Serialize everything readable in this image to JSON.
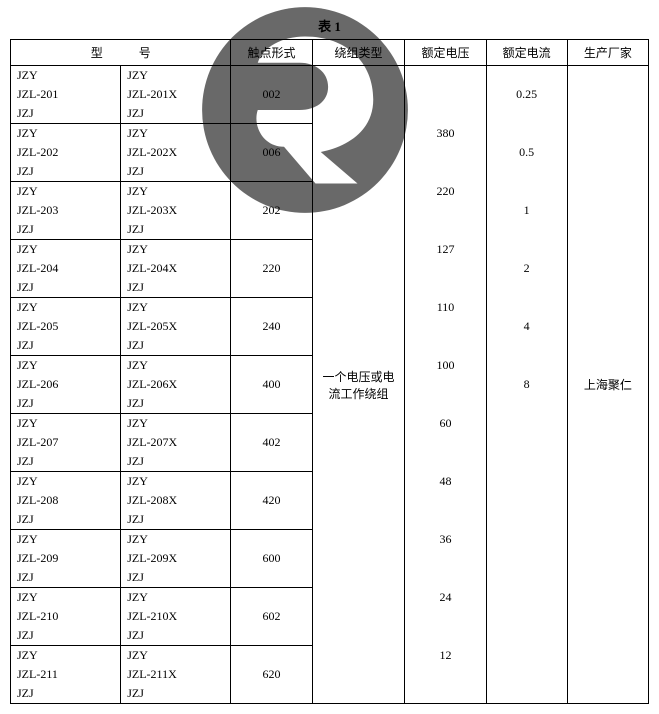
{
  "caption": "表 1",
  "headers": {
    "model": "型　　　号",
    "contact": "触点形式",
    "winding": "绕组类型",
    "voltage": "额定电压",
    "current": "额定电流",
    "mfr": "生产厂家"
  },
  "winding_text": "一个电压或电流工作绕组",
  "mfr_text": "上海聚仁",
  "voltages": [
    "380",
    "220",
    "127",
    "110",
    "100",
    "60",
    "48",
    "36",
    "24",
    "12"
  ],
  "currents": [
    "0.25",
    "0.5",
    "1",
    "2",
    "4",
    "8"
  ],
  "rows": [
    {
      "a1": "JZY",
      "a2": "JZL-201",
      "a3": "JZJ",
      "b1": "JZY",
      "b2": "JZL-201X",
      "b3": "JZJ",
      "ct": "002"
    },
    {
      "a1": "JZY",
      "a2": "JZL-202",
      "a3": "JZJ",
      "b1": "JZY",
      "b2": "JZL-202X",
      "b3": "JZJ",
      "ct": "006"
    },
    {
      "a1": "JZY",
      "a2": "JZL-203",
      "a3": "JZJ",
      "b1": "JZY",
      "b2": "JZL-203X",
      "b3": "JZJ",
      "ct": "202"
    },
    {
      "a1": "JZY",
      "a2": "JZL-204",
      "a3": "JZJ",
      "b1": "JZY",
      "b2": "JZL-204X",
      "b3": "JZJ",
      "ct": "220"
    },
    {
      "a1": "JZY",
      "a2": "JZL-205",
      "a3": "JZJ",
      "b1": "JZY",
      "b2": "JZL-205X",
      "b3": "JZJ",
      "ct": "240"
    },
    {
      "a1": "JZY",
      "a2": "JZL-206",
      "a3": "JZJ",
      "b1": "JZY",
      "b2": "JZL-206X",
      "b3": "JZJ",
      "ct": "400"
    },
    {
      "a1": "JZY",
      "a2": "JZL-207",
      "a3": "JZJ",
      "b1": "JZY",
      "b2": "JZL-207X",
      "b3": "JZJ",
      "ct": "402"
    },
    {
      "a1": "JZY",
      "a2": "JZL-208",
      "a3": "JZJ",
      "b1": "JZY",
      "b2": "JZL-208X",
      "b3": "JZJ",
      "ct": "420"
    },
    {
      "a1": "JZY",
      "a2": "JZL-209",
      "a3": "JZJ",
      "b1": "JZY",
      "b2": "JZL-209X",
      "b3": "JZJ",
      "ct": "600"
    },
    {
      "a1": "JZY",
      "a2": "JZL-210",
      "a3": "JZJ",
      "b1": "JZY",
      "b2": "JZL-210X",
      "b3": "JZJ",
      "ct": "602"
    },
    {
      "a1": "JZY",
      "a2": "JZL-211",
      "a3": "JZJ",
      "b1": "JZY",
      "b2": "JZL-211X",
      "b3": "JZJ",
      "ct": "620"
    }
  ],
  "colors": {
    "wm": "#4f4f4f",
    "text": "#000000",
    "border": "#000000",
    "bg": "#ffffff"
  }
}
